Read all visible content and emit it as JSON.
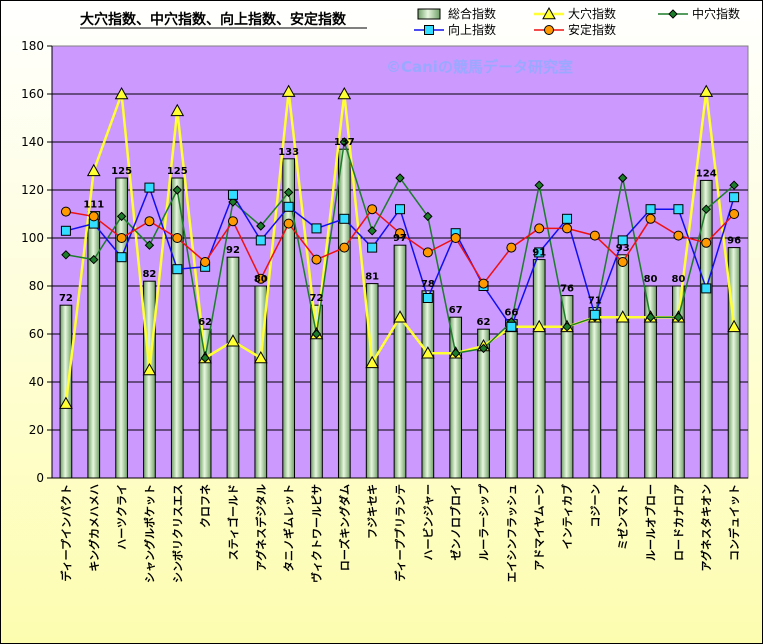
{
  "chart_data": {
    "type": "bar",
    "title": "大穴指数、中穴指数、向上指数、安定指数",
    "watermark": "©Caniの競馬データ研究室",
    "ylim": [
      0,
      180
    ],
    "yticks": [
      0,
      20,
      40,
      60,
      80,
      100,
      120,
      140,
      160,
      180
    ],
    "legend_placement": "top-right",
    "grid": true,
    "categories": [
      "ディープインパクト",
      "キングカメハメハ",
      "ハーツクライ",
      "シャングルポケット",
      "シンボリクリスエス",
      "クロフネ",
      "スティゴールド",
      "アグネスデジタル",
      "タニノギムレット",
      "ヴィクトワールピサ",
      "ローズキングダム",
      "フジキセキ",
      "ディープブリランテ",
      "ハービンジャー",
      "ゼンノロブロイ",
      "ルーラーシップ",
      "エイシンフラッシュ",
      "アドマイヤムーン",
      "インティカブ",
      "コジーン",
      "ミゼンマスト",
      "ルールオブロー",
      "ロードカナロア",
      "アグネスタキオン",
      "コンデュイット"
    ],
    "series": [
      {
        "name": "総合指数",
        "kind": "bar",
        "color": "#c6e8b8",
        "values": [
          72,
          111,
          125,
          82,
          125,
          62,
          92,
          80,
          133,
          72,
          137,
          81,
          97,
          78,
          67,
          62,
          66,
          91,
          76,
          71,
          93,
          80,
          80,
          124,
          96
        ],
        "labels": [
          "72",
          "111",
          "125",
          "82",
          "125",
          "62",
          "92",
          "80",
          "133",
          "72",
          "137",
          "81",
          "97",
          "78",
          "67",
          "62",
          "66",
          "91",
          "76",
          "71",
          "93",
          "80",
          "80",
          "124",
          "96"
        ]
      },
      {
        "name": "大穴指数",
        "kind": "line",
        "color": "#ffff33",
        "marker": "triangle",
        "values": [
          31,
          128,
          160,
          45,
          153,
          50,
          57,
          50,
          161,
          60,
          160,
          48,
          67,
          52,
          52,
          55,
          63,
          63,
          63,
          67,
          67,
          67,
          67,
          161,
          63
        ]
      },
      {
        "name": "中穴指数",
        "kind": "line",
        "color": "#1c7d2a",
        "marker": "diamond",
        "values": [
          93,
          91,
          109,
          97,
          120,
          50,
          115,
          105,
          119,
          60,
          140,
          103,
          125,
          109,
          52,
          54,
          65,
          122,
          63,
          67,
          125,
          67,
          67,
          112,
          122
        ]
      },
      {
        "name": "向上指数",
        "kind": "line",
        "color": "#1010ee",
        "marker": "square",
        "values": [
          103,
          106,
          92,
          121,
          87,
          88,
          118,
          99,
          113,
          104,
          108,
          96,
          112,
          75,
          102,
          80,
          63,
          94,
          108,
          68,
          99,
          112,
          112,
          79,
          117
        ]
      },
      {
        "name": "安定指数",
        "kind": "line",
        "color": "#ee1111",
        "marker": "circle",
        "values": [
          111,
          109,
          100,
          107,
          100,
          90,
          107,
          83,
          106,
          91,
          96,
          112,
          102,
          94,
          100,
          81,
          96,
          104,
          104,
          101,
          90,
          108,
          101,
          98,
          110
        ]
      }
    ]
  }
}
